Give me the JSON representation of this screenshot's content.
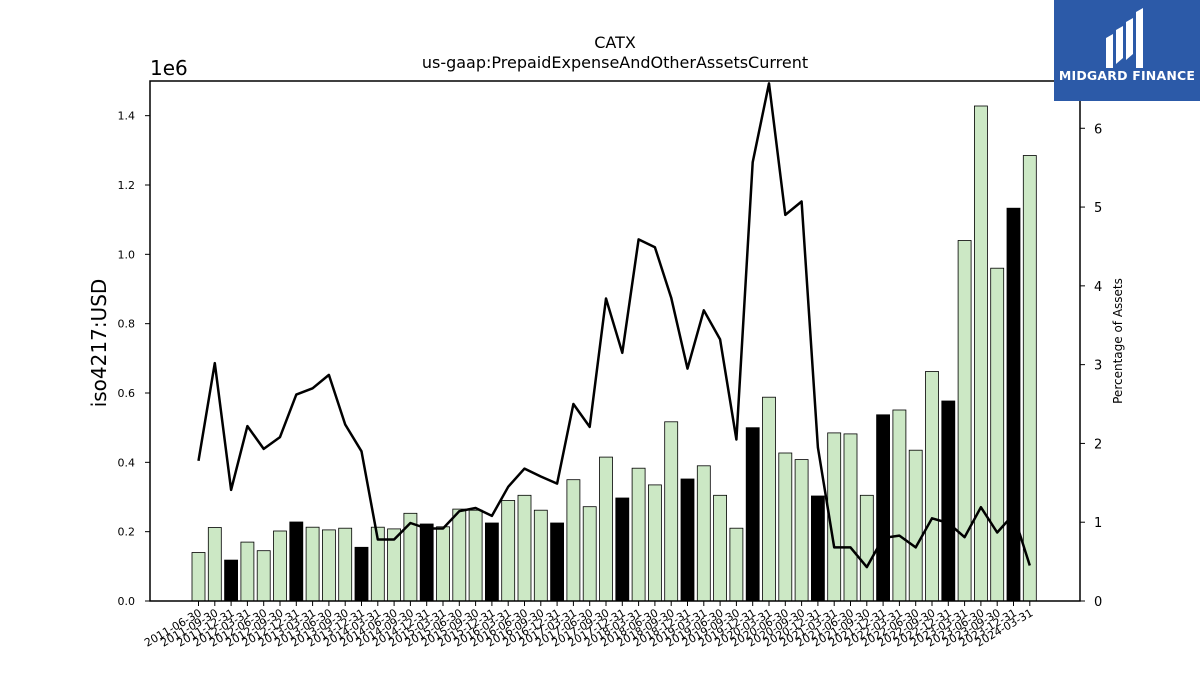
{
  "colors": {
    "bar_light": "#cce8c5",
    "bar_dark": "#000000",
    "line": "#000000",
    "logo_bg": "#2c5aa8"
  },
  "logo": {
    "text": "MIDGARD FINANCE"
  },
  "chart_data": {
    "type": "bar",
    "title": "CATX",
    "subtitle": "us-gaap:PrepaidExpenseAndOtherAssetsCurrent",
    "ylabel": "iso4217:USD",
    "y_multiplier": "1e6",
    "ylim": [
      0,
      1500000
    ],
    "yticks": [
      0,
      200000,
      400000,
      600000,
      800000,
      1000000,
      1200000,
      1400000
    ],
    "ytick_labels": [
      "0.0",
      "0.2",
      "0.4",
      "0.6",
      "0.8",
      "1.0",
      "1.2",
      "1.4"
    ],
    "y2label": "Percentage of Assets",
    "y2lim": [
      0,
      6.6
    ],
    "y2ticks": [
      0,
      1,
      2,
      3,
      4,
      5,
      6
    ],
    "grid": false,
    "categories": [
      "2011-06-30",
      "2011-09-30",
      "2011-12-31",
      "2012-03-31",
      "2012-06-30",
      "2012-09-30",
      "2012-12-31",
      "2013-03-31",
      "2013-06-30",
      "2013-09-30",
      "2013-12-31",
      "2014-03-31",
      "2014-06-30",
      "2014-09-30",
      "2014-12-31",
      "2015-03-31",
      "2015-06-30",
      "2015-09-30",
      "2015-12-31",
      "2016-03-31",
      "2016-06-30",
      "2016-09-30",
      "2016-12-31",
      "2017-03-31",
      "2017-06-30",
      "2017-09-30",
      "2017-12-31",
      "2018-03-31",
      "2018-06-30",
      "2018-09-30",
      "2018-12-31",
      "2019-03-31",
      "2019-06-30",
      "2019-09-30",
      "2019-12-31",
      "2020-03-31",
      "2020-06-30",
      "2020-09-30",
      "2020-12-31",
      "2021-03-31",
      "2021-06-30",
      "2021-09-30",
      "2021-12-31",
      "2022-03-31",
      "2022-06-30",
      "2022-09-30",
      "2022-12-31",
      "2023-03-31",
      "2023-06-30",
      "2023-09-30",
      "2023-12-31",
      "2024-03-31"
    ],
    "visible_xtick_labels": [
      "2011-06-30",
      "2011-09-30",
      "2011-12-31",
      "2012-03-31",
      "2012-06-30",
      "2012-09-30",
      "2012-12-31",
      "2013-03-31",
      "2013-06-30",
      "2013-09-30",
      "2013-12-31",
      "2014-03-31",
      "2014-06-30",
      "2014-09-30",
      "2014-12-31",
      "2015-03-31",
      "2015-06-30",
      "2015-09-30",
      "2015-12-31",
      "2016-03-31",
      "2016-06-30",
      "2016-09-30",
      "2016-12-31",
      "2017-03-31",
      "2017-06-30",
      "2017-09-30",
      "2017-12-31",
      "2018-03-31",
      "2018-06-30",
      "2018-09-30",
      "2018-12-31",
      "2019-03-31",
      "2019-06-30",
      "2019-09-30",
      "2019-12-31",
      "2020-03-31",
      "2020-06-30",
      "2020-09-30",
      "2020-12-31",
      "2021-03-31",
      "2021-06-30",
      "2021-09-30",
      "2021-12-31",
      "2022-03-31",
      "2022-06-30",
      "2022-09-30",
      "2022-12-31",
      "2023-03-31",
      "2023-06-30",
      "2023-09-30",
      "2023-12-31",
      "2024-03-31"
    ],
    "values": [
      140000,
      212000,
      118000,
      170000,
      145000,
      202000,
      228000,
      213000,
      205000,
      210000,
      155000,
      213000,
      208000,
      253000,
      222000,
      214000,
      265000,
      262000,
      225000,
      290000,
      305000,
      262000,
      225000,
      350000,
      272000,
      415000,
      297000,
      383000,
      335000,
      517000,
      352000,
      390000,
      305000,
      210000,
      500000,
      588000,
      427000,
      408000,
      303000,
      485000,
      482000,
      305000,
      537000,
      551000,
      435000,
      662000,
      577000,
      1040000,
      1428000,
      960000,
      1133000,
      1285000
    ],
    "dark_bars": [
      2,
      6,
      10,
      14,
      18,
      22,
      26,
      30,
      34,
      38,
      42,
      46,
      50
    ],
    "line_name": "Percentage of Assets",
    "line_values": [
      1.78,
      3.02,
      1.41,
      2.22,
      1.93,
      2.08,
      2.62,
      2.7,
      2.87,
      2.24,
      1.9,
      0.78,
      0.78,
      0.99,
      0.92,
      0.92,
      1.14,
      1.18,
      1.08,
      1.45,
      1.68,
      1.58,
      1.49,
      2.5,
      2.21,
      3.84,
      3.15,
      4.59,
      4.49,
      3.85,
      2.95,
      3.69,
      3.32,
      2.05,
      5.57,
      6.57,
      4.9,
      5.07,
      1.95,
      0.68,
      0.68,
      0.43,
      0.8,
      0.83,
      0.68,
      1.05,
      0.99,
      0.81,
      1.19,
      0.87,
      1.1,
      0.45
    ]
  }
}
